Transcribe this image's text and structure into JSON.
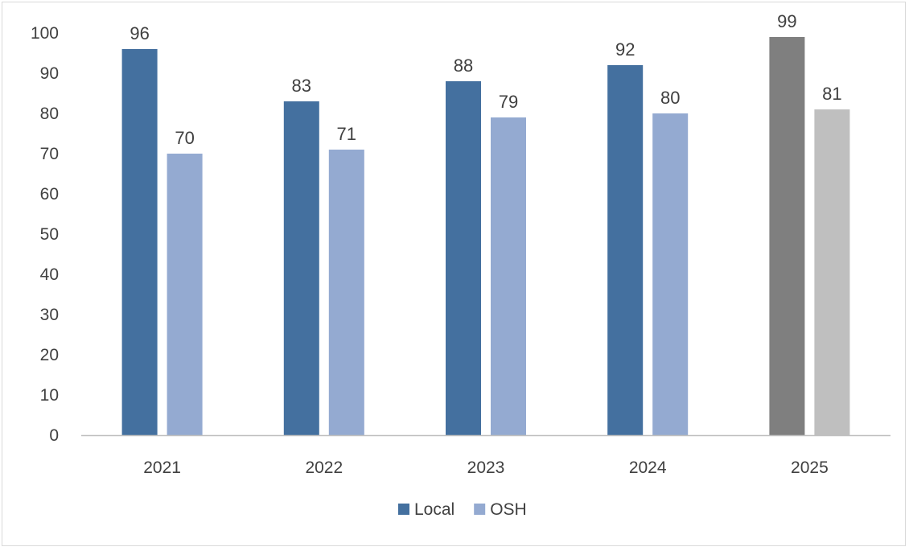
{
  "chart_data": {
    "type": "bar",
    "title": "",
    "xlabel": "",
    "ylabel": "",
    "categories": [
      "2021",
      "2022",
      "2023",
      "2024",
      "2025"
    ],
    "series": [
      {
        "name": "Local",
        "values": [
          96,
          83,
          88,
          92,
          99
        ],
        "colors": [
          "#44709f",
          "#44709f",
          "#44709f",
          "#44709f",
          "#7f7f7f"
        ]
      },
      {
        "name": "OSH",
        "values": [
          70,
          71,
          79,
          80,
          81
        ],
        "colors": [
          "#94aad1",
          "#94aad1",
          "#94aad1",
          "#94aad1",
          "#bfbfbf"
        ]
      }
    ],
    "ylim": [
      0,
      100
    ],
    "yticks": [
      0,
      10,
      20,
      30,
      40,
      50,
      60,
      70,
      80,
      90,
      100
    ],
    "grid": false,
    "legend": {
      "position": "bottom",
      "entries": [
        {
          "label": "Local",
          "color": "#44709f"
        },
        {
          "label": "OSH",
          "color": "#94aad1"
        }
      ]
    },
    "axis_color": "#bfbfbf"
  }
}
